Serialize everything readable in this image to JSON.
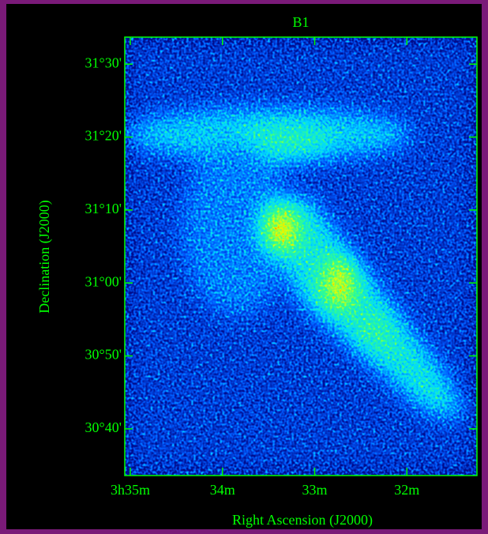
{
  "chart_data": {
    "type": "image",
    "title": "B1",
    "x_label": "Right Ascension (J2000)",
    "y_label": "Declination (J2000)",
    "color": "#00ff00",
    "xlim": [
      215.06,
      211.24
    ],
    "xticks": [
      {
        "value": 215,
        "label": "3h35m"
      },
      {
        "value": 214,
        "label": "34m"
      },
      {
        "value": 213,
        "label": "33m"
      },
      {
        "value": 212,
        "label": "32m"
      }
    ],
    "ylim": [
      1833.6,
      1893.7
    ],
    "yticks": [
      {
        "value": 1840,
        "label": "30°40'"
      },
      {
        "value": 1850,
        "label": "30°50'"
      },
      {
        "value": 1860,
        "label": "31°00'"
      },
      {
        "value": 1870,
        "label": "31°10'"
      },
      {
        "value": 1880,
        "label": "31°20'"
      },
      {
        "value": 1890,
        "label": "31°30'"
      }
    ]
  }
}
